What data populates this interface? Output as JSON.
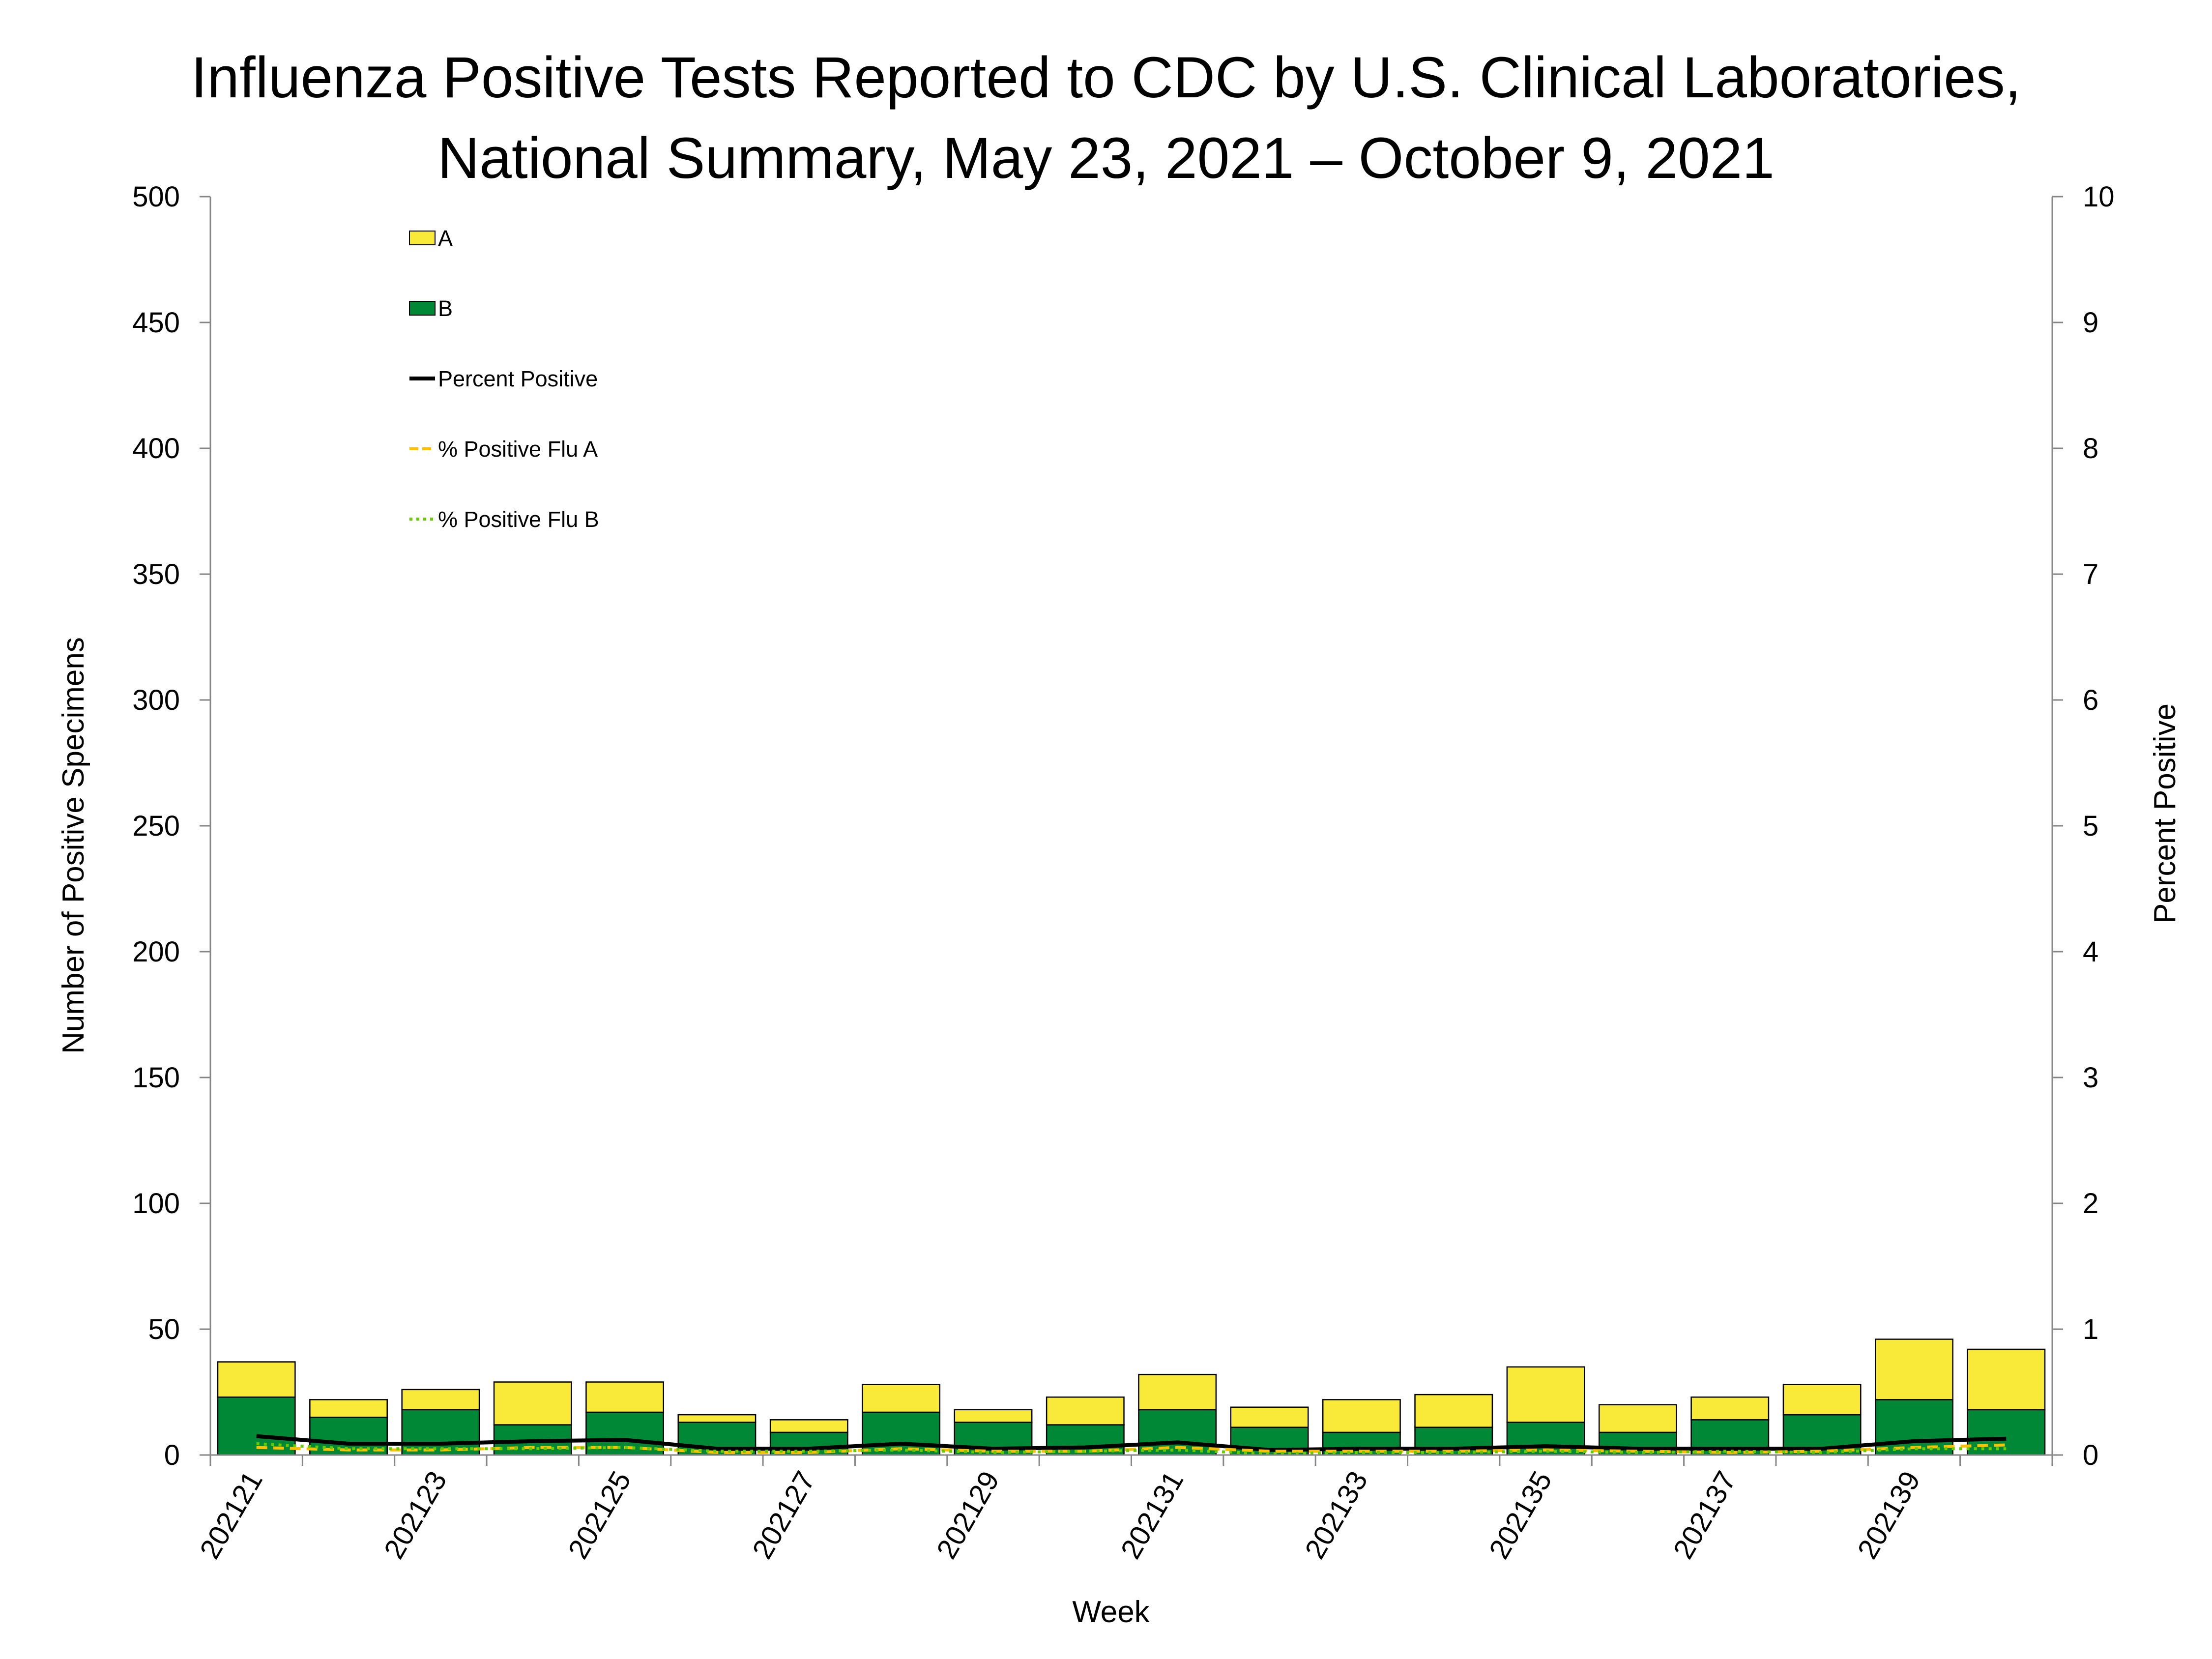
{
  "chart_data": {
    "type": "bar",
    "title_line1": "Influenza Positive Tests Reported to CDC by U.S. Clinical Laboratories,",
    "title_line2": "National Summary, May 23, 2021 – October 9, 2021",
    "xlabel": "Week",
    "ylabel_left": "Number of Positive Specimens",
    "ylabel_right": "Percent Positive",
    "categories": [
      "202121",
      "202122",
      "202123",
      "202124",
      "202125",
      "202126",
      "202127",
      "202128",
      "202129",
      "202130",
      "202131",
      "202132",
      "202133",
      "202134",
      "202135",
      "202136",
      "202137",
      "202138",
      "202139",
      "202140"
    ],
    "x_tick_labels": [
      "202121",
      "202123",
      "202125",
      "202127",
      "202129",
      "202131",
      "202133",
      "202135",
      "202137",
      "202139"
    ],
    "y_left": {
      "min": 0,
      "max": 500,
      "ticks": [
        0,
        50,
        100,
        150,
        200,
        250,
        300,
        350,
        400,
        450,
        500
      ]
    },
    "y_right": {
      "min": 0,
      "max": 10,
      "ticks": [
        0,
        1,
        2,
        3,
        4,
        5,
        6,
        7,
        8,
        9,
        10
      ]
    },
    "stacked": true,
    "series": [
      {
        "name": "B",
        "axis": "left",
        "kind": "bar",
        "color": "#008837",
        "values": [
          23,
          15,
          18,
          12,
          17,
          13,
          9,
          17,
          13,
          12,
          18,
          11,
          9,
          11,
          13,
          9,
          14,
          16,
          22,
          18
        ]
      },
      {
        "name": "A",
        "axis": "left",
        "kind": "bar",
        "color": "#f9e939",
        "values": [
          14,
          7,
          8,
          17,
          12,
          3,
          5,
          11,
          5,
          11,
          14,
          8,
          13,
          13,
          22,
          11,
          9,
          12,
          24,
          24
        ]
      },
      {
        "name": "Percent Positive",
        "axis": "right",
        "kind": "line",
        "color": "#000000",
        "style": "solid",
        "values": [
          0.15,
          0.09,
          0.09,
          0.11,
          0.12,
          0.05,
          0.05,
          0.09,
          0.05,
          0.06,
          0.1,
          0.04,
          0.05,
          0.05,
          0.07,
          0.05,
          0.05,
          0.05,
          0.11,
          0.13
        ]
      },
      {
        "name": "% Positive Flu A",
        "axis": "right",
        "kind": "line",
        "color": "#ffc000",
        "style": "dashed",
        "values": [
          0.06,
          0.04,
          0.04,
          0.06,
          0.06,
          0.02,
          0.02,
          0.05,
          0.03,
          0.03,
          0.06,
          0.03,
          0.03,
          0.03,
          0.04,
          0.03,
          0.02,
          0.03,
          0.06,
          0.08
        ]
      },
      {
        "name": "% Positive Flu B",
        "axis": "right",
        "kind": "line",
        "color": "#66cc00",
        "style": "dotted",
        "values": [
          0.09,
          0.05,
          0.05,
          0.05,
          0.06,
          0.03,
          0.03,
          0.04,
          0.02,
          0.03,
          0.04,
          0.01,
          0.02,
          0.02,
          0.03,
          0.02,
          0.03,
          0.02,
          0.05,
          0.05
        ]
      }
    ],
    "legend": {
      "position": "top-left",
      "items": [
        {
          "label": "A",
          "symbol": "box",
          "color": "#f9e939"
        },
        {
          "label": "B",
          "symbol": "box",
          "color": "#008837"
        },
        {
          "label": "Percent Positive",
          "symbol": "solid-line",
          "color": "#000000"
        },
        {
          "label": "% Positive Flu A",
          "symbol": "dashed-line",
          "color": "#ffc000"
        },
        {
          "label": "% Positive Flu B",
          "symbol": "dotted-line",
          "color": "#66cc00"
        }
      ]
    },
    "grid": false
  }
}
